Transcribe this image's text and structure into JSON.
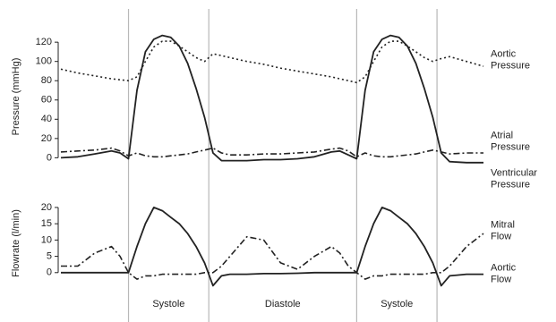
{
  "chart_data": [
    {
      "type": "line",
      "ylabel": "Pressure (mmHg)",
      "x": [
        0,
        4,
        8,
        12,
        14,
        16,
        18,
        20,
        22,
        24,
        26,
        28,
        30,
        32,
        34,
        36,
        38,
        40,
        44,
        48,
        52,
        56,
        60,
        64,
        66,
        68,
        70,
        72,
        74,
        76,
        78,
        80,
        82,
        84,
        86,
        88,
        90,
        92,
        96,
        100
      ],
      "xlim": [
        0,
        100
      ],
      "ylim": [
        -8,
        135
      ],
      "yticks": [
        0,
        20,
        40,
        60,
        80,
        100,
        120
      ],
      "series": [
        {
          "name": "Aortic Pressure",
          "color": "#222222",
          "style": "dotted",
          "values": [
            92,
            88,
            85,
            82,
            81,
            80,
            84,
            100,
            115,
            121,
            121,
            116,
            110,
            104,
            100,
            108,
            106,
            104,
            100,
            97,
            93,
            90,
            87,
            84,
            82,
            80,
            78,
            84,
            100,
            115,
            121,
            121,
            116,
            110,
            104,
            100,
            103,
            105,
            100,
            95
          ]
        },
        {
          "name": "Ventricular Pressure",
          "color": "#222222",
          "style": "solid",
          "values": [
            0,
            1,
            4,
            7,
            5,
            -1,
            70,
            110,
            123,
            127,
            125,
            116,
            98,
            72,
            42,
            5,
            -3,
            -3,
            -3,
            -2,
            -2,
            -1,
            1,
            6,
            7,
            3,
            -1,
            70,
            110,
            123,
            127,
            125,
            116,
            98,
            72,
            42,
            5,
            -4,
            -5,
            -5
          ]
        },
        {
          "name": "Atrial Pressure",
          "color": "#222222",
          "style": "dashdot",
          "values": [
            6,
            7,
            8,
            10,
            7,
            2,
            5,
            2,
            1,
            1,
            2,
            3,
            4,
            6,
            8,
            10,
            5,
            3,
            3,
            4,
            4,
            5,
            6,
            9,
            10,
            7,
            1,
            5,
            2,
            1,
            1,
            2,
            3,
            4,
            6,
            8,
            6,
            4,
            5,
            5
          ]
        }
      ]
    },
    {
      "type": "line",
      "ylabel": "Flowrate (l/min)",
      "x": [
        0,
        4,
        8,
        12,
        14,
        16,
        18,
        20,
        22,
        24,
        26,
        28,
        30,
        32,
        34,
        36,
        38,
        40,
        44,
        48,
        52,
        56,
        60,
        64,
        66,
        68,
        70,
        72,
        74,
        76,
        78,
        80,
        82,
        84,
        86,
        88,
        90,
        92,
        96,
        100
      ],
      "xlim": [
        0,
        100
      ],
      "ylim": [
        -5,
        23
      ],
      "yticks": [
        0,
        5,
        10,
        15,
        20
      ],
      "series": [
        {
          "name": "Mitral Flow",
          "color": "#222222",
          "style": "dashdot",
          "values": [
            2,
            2,
            6,
            8,
            5,
            0,
            -2,
            -1,
            -1,
            -0.5,
            -0.5,
            -0.5,
            -0.5,
            -0.5,
            0,
            0,
            2,
            5,
            11,
            10,
            3,
            1,
            5,
            8,
            6,
            2,
            0,
            -2,
            -1,
            -1,
            -0.5,
            -0.5,
            -0.5,
            -0.5,
            -0.5,
            0,
            0,
            2,
            8,
            12
          ]
        },
        {
          "name": "Aortic Flow",
          "color": "#222222",
          "style": "solid",
          "values": [
            0,
            0,
            0,
            0,
            0,
            0,
            8,
            15,
            20,
            19,
            17,
            15,
            12,
            8,
            3,
            -4,
            -1,
            -0.5,
            -0.5,
            -0.3,
            -0.3,
            -0.2,
            0,
            0,
            0,
            0,
            0,
            8,
            15,
            20,
            19,
            17,
            15,
            12,
            8,
            3,
            -4,
            -1,
            -0.5,
            -0.5
          ]
        }
      ]
    }
  ],
  "phases": {
    "boundaries": [
      16,
      35,
      70,
      89
    ],
    "labels": [
      "Systole",
      "Diastole",
      "Systole"
    ]
  }
}
